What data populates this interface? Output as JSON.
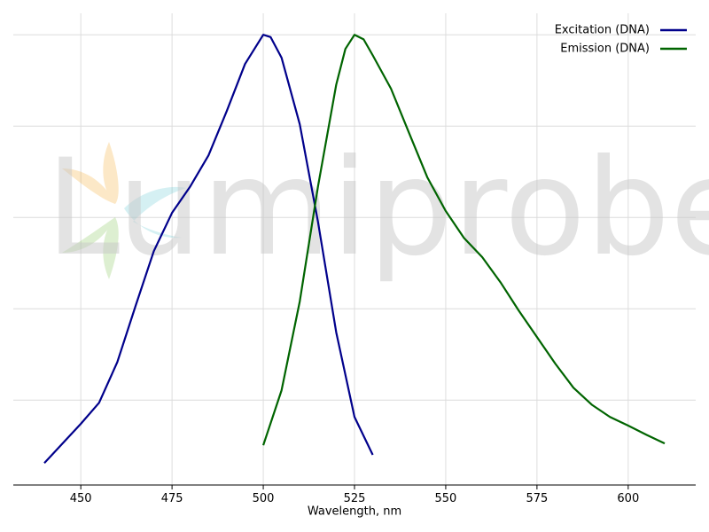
{
  "chart_data": {
    "type": "line",
    "watermark": "Lumiprobe",
    "x_label": "Wavelength, nm",
    "xlim": [
      431.5,
      618.5
    ],
    "xticks": [
      450,
      475,
      500,
      525,
      550,
      575,
      600
    ],
    "ylim": [
      0.014,
      1.047
    ],
    "yticks": [
      0.2,
      0.4,
      0.6,
      0.8,
      1.0
    ],
    "show_ytick_labels": false,
    "grid": true,
    "legend": "upper right",
    "series": [
      {
        "name": "Excitation (DNA)",
        "color": "#00008b",
        "x": [
          440,
          445,
          450,
          455,
          460,
          465,
          470,
          475,
          480,
          485,
          490,
          495,
          500,
          502,
          505,
          510,
          515,
          520,
          525,
          530
        ],
        "values": [
          0.062,
          0.105,
          0.148,
          0.194,
          0.283,
          0.406,
          0.526,
          0.61,
          0.668,
          0.736,
          0.833,
          0.936,
          1.0,
          0.995,
          0.95,
          0.804,
          0.59,
          0.348,
          0.163,
          0.08
        ]
      },
      {
        "name": "Emission (DNA)",
        "color": "#006400",
        "x": [
          500,
          505,
          510,
          515,
          520,
          522.5,
          525,
          527.5,
          530,
          535,
          540,
          545,
          550,
          555,
          560,
          565,
          570,
          575,
          580,
          585,
          590,
          595,
          600,
          605,
          610
        ],
        "values": [
          0.101,
          0.221,
          0.416,
          0.668,
          0.891,
          0.969,
          1.0,
          0.99,
          0.955,
          0.882,
          0.784,
          0.687,
          0.614,
          0.555,
          0.513,
          0.458,
          0.396,
          0.338,
          0.28,
          0.227,
          0.19,
          0.163,
          0.144,
          0.124,
          0.105
        ]
      }
    ]
  }
}
